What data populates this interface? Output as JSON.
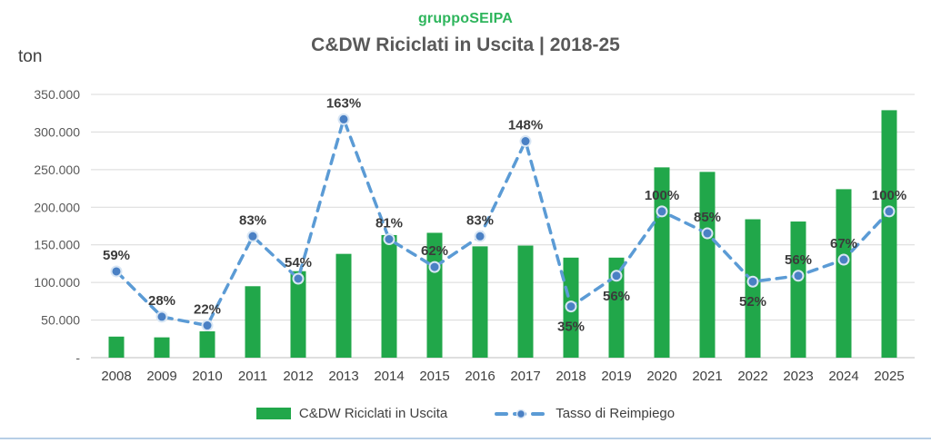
{
  "header": {
    "brand": "gruppoSEIPA",
    "title": "C&DW Riciclati in Uscita | 2018-25"
  },
  "axis": {
    "unit_label": "ton",
    "y_tick_labels": [
      "-",
      "50.000",
      "100.000",
      "150.000",
      "200.000",
      "250.000",
      "300.000",
      "350.000"
    ]
  },
  "legend": {
    "bar_label": "C&DW Riciclati in Uscita",
    "line_label": "Tasso di Reimpiego"
  },
  "colors": {
    "brand_green": "#2eb55c",
    "bar_green": "#21a74a",
    "line_blue": "#5b9bd5",
    "marker_fill": "#4a80c4",
    "marker_ring": "#d8e6f4",
    "title_gray": "#595959",
    "grid_gray": "#d9d9d9",
    "baseline_gray": "#bfbfbf",
    "divider_blue": "#b7cee6"
  },
  "chart_data": {
    "type": "bar",
    "title": "C&DW Riciclati in Uscita | 2018-25",
    "xlabel": "",
    "ylabel": "ton",
    "ylim": [
      0,
      350000
    ],
    "y2lim_percent": [
      0,
      180
    ],
    "grid": true,
    "legend_position": "bottom",
    "categories": [
      2008,
      2009,
      2010,
      2011,
      2012,
      2013,
      2014,
      2015,
      2016,
      2017,
      2018,
      2019,
      2020,
      2021,
      2022,
      2023,
      2024,
      2025
    ],
    "series": [
      {
        "name": "C&DW Riciclati in Uscita",
        "type": "bar",
        "axis": "left",
        "unit": "ton",
        "values": [
          28000,
          27000,
          35000,
          95000,
          115000,
          138000,
          163000,
          166000,
          148000,
          149000,
          133000,
          133000,
          253000,
          247000,
          184000,
          181000,
          224000,
          329000
        ]
      },
      {
        "name": "Tasso di Reimpiego",
        "type": "line",
        "axis": "right",
        "unit": "%",
        "values": [
          59,
          28,
          22,
          83,
          54,
          163,
          81,
          62,
          83,
          148,
          35,
          56,
          100,
          85,
          52,
          56,
          67,
          100
        ],
        "label_positions": [
          "above",
          "above",
          "above",
          "above",
          "above",
          "above",
          "above",
          "above",
          "above",
          "above",
          "below",
          "below",
          "above",
          "above",
          "below",
          "above",
          "above",
          "above"
        ]
      }
    ]
  }
}
